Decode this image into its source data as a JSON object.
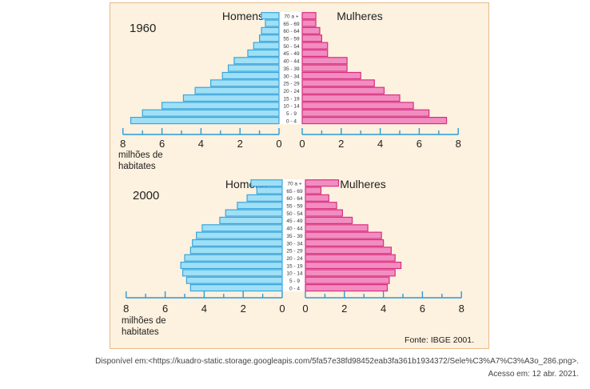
{
  "chart_data": [
    {
      "type": "bar",
      "title": "1960",
      "orientation": "horizontal",
      "subtype": "population-pyramid",
      "categories": [
        "0 - 4",
        "5 - 9",
        "10 - 14",
        "15 - 19",
        "20 - 24",
        "25 - 29",
        "30 - 34",
        "35 - 39",
        "40 - 44",
        "45 - 49",
        "50 - 54",
        "55 - 59",
        "60 - 64",
        "65 - 69",
        "70 a +"
      ],
      "series": [
        {
          "name": "Homens",
          "color": "#9fe0f7",
          "values": [
            7.6,
            7.0,
            6.0,
            4.9,
            4.3,
            3.5,
            2.9,
            2.6,
            2.3,
            1.6,
            1.3,
            1.0,
            0.9,
            0.7,
            0.9
          ]
        },
        {
          "name": "Mulheres",
          "color": "#f28dc2",
          "values": [
            7.4,
            6.5,
            5.7,
            5.0,
            4.2,
            3.7,
            3.0,
            2.3,
            2.3,
            1.3,
            1.3,
            1.0,
            0.9,
            0.7,
            0.7
          ]
        }
      ],
      "xlabel": "milhões de habitates",
      "xticks_left": [
        "8",
        "6",
        "4",
        "2",
        "0"
      ],
      "xticks_right": [
        "0",
        "2",
        "4",
        "6",
        "8"
      ],
      "xlim": [
        0,
        8
      ],
      "grid": false,
      "legend": "series names printed above each side"
    },
    {
      "type": "bar",
      "title": "2000",
      "orientation": "horizontal",
      "subtype": "population-pyramid",
      "categories": [
        "0 - 4",
        "5 - 9",
        "10 - 14",
        "15 - 19",
        "20 - 24",
        "25 - 29",
        "30 - 34",
        "35 - 39",
        "40 - 44",
        "45 - 49",
        "50 - 54",
        "55 - 59",
        "60 - 64",
        "65 - 69",
        "70 a +"
      ],
      "series": [
        {
          "name": "Homens",
          "color": "#9fe0f7",
          "values": [
            4.7,
            4.9,
            5.1,
            5.2,
            5.0,
            4.7,
            4.6,
            4.4,
            4.1,
            3.2,
            2.9,
            2.3,
            1.8,
            1.3,
            1.6
          ]
        },
        {
          "name": "Mulheres",
          "color": "#f28dc2",
          "values": [
            4.2,
            4.3,
            4.6,
            4.9,
            4.6,
            4.4,
            4.0,
            3.9,
            3.2,
            2.4,
            1.9,
            1.6,
            1.2,
            0.8,
            1.7
          ]
        }
      ],
      "xlabel": "milhões de habitates",
      "xticks_left": [
        "8",
        "6",
        "4",
        "2",
        "0"
      ],
      "xticks_right": [
        "0",
        "2",
        "4",
        "6",
        "8"
      ],
      "xlim": [
        0,
        8
      ],
      "grid": false,
      "legend": "series names printed above each side"
    }
  ],
  "labels": {
    "xlabel_line1": "milhões de",
    "xlabel_line2": "habitates",
    "source": "Fonte: IBGE 2001."
  },
  "footer": {
    "line1": "Disponível em:<https://kuadro-static.storage.googleapis.com/5fa57e38fd98452eab3fa361b1934372/Sele%C3%A7%C3%A3o_286.png>.",
    "line2": "Acesso em: 12 abr. 2021."
  },
  "colors": {
    "homens_fill": "#9fe0f7",
    "homens_stroke": "#3aa6dc",
    "mulheres_fill": "#f28dc2",
    "mulheres_stroke": "#d8307e",
    "axis": "#2a9bd6",
    "panel_bg": "#fdf1df"
  }
}
